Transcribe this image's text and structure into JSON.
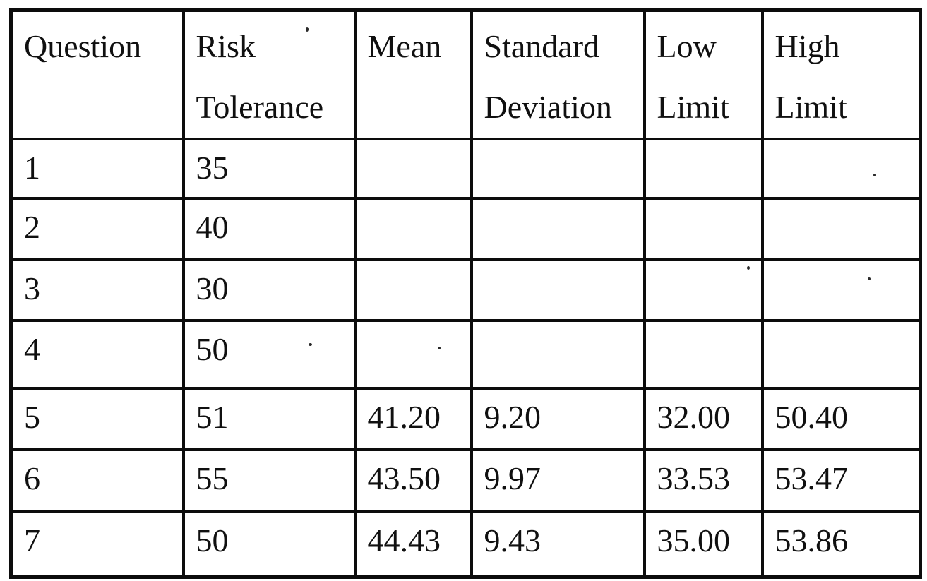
{
  "colors": {
    "paper": "#ffffff",
    "ink": "#101010",
    "rule": "#0c0c0c"
  },
  "table": {
    "columns": [
      "Question",
      "Risk Tolerance",
      "Mean",
      "Standard Deviation",
      "Low Limit",
      "High Limit"
    ],
    "rows": [
      [
        "1",
        "35",
        "",
        "",
        "",
        ""
      ],
      [
        "2",
        "40",
        "",
        "",
        "",
        ""
      ],
      [
        "3",
        "30",
        "",
        "",
        "",
        ""
      ],
      [
        "4",
        "50",
        "",
        "",
        "",
        ""
      ],
      [
        "5",
        "51",
        "41.20",
        "9.20",
        "32.00",
        "50.40"
      ],
      [
        "6",
        "55",
        "43.50",
        "9.97",
        "33.53",
        "53.47"
      ],
      [
        "7",
        "50",
        "44.43",
        "9.43",
        "35.00",
        "53.86"
      ]
    ]
  }
}
